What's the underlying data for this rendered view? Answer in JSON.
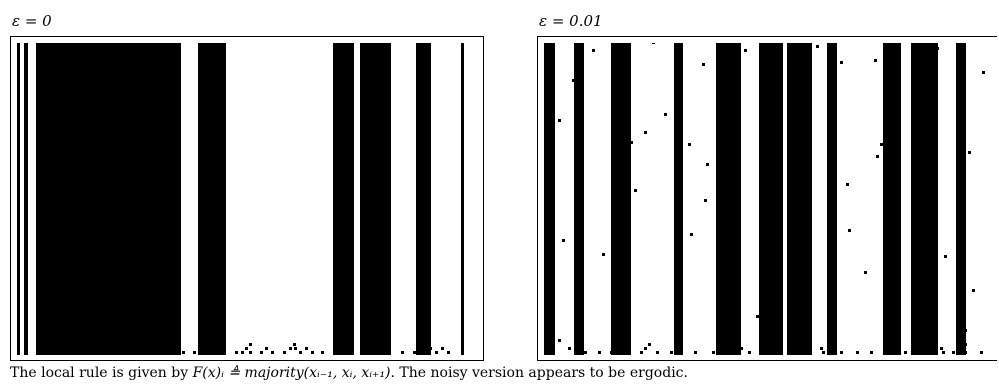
{
  "panels": [
    {
      "label": "ε = 0",
      "columns": [
        {
          "x": 0,
          "w": 3
        },
        {
          "x": 7,
          "w": 4
        },
        {
          "x": 19,
          "w": 145
        },
        {
          "x": 181,
          "w": 28
        },
        {
          "x": 316,
          "w": 21
        },
        {
          "x": 343,
          "w": 31
        },
        {
          "x": 399,
          "w": 15
        },
        {
          "x": 444,
          "w": 3
        }
      ],
      "dots": [
        [
          40,
          318
        ],
        [
          44,
          318
        ],
        [
          48,
          318
        ],
        [
          52,
          318
        ],
        [
          56,
          318
        ],
        [
          64,
          318
        ],
        [
          71,
          318
        ],
        [
          100,
          318
        ],
        [
          110,
          318
        ],
        [
          121,
          318
        ],
        [
          132,
          318
        ],
        [
          140,
          318
        ],
        [
          150,
          318
        ],
        [
          156,
          318
        ],
        [
          165,
          318
        ],
        [
          176,
          318
        ],
        [
          218,
          318
        ],
        [
          224,
          318
        ],
        [
          232,
          318
        ],
        [
          243,
          318
        ],
        [
          254,
          318
        ],
        [
          266,
          318
        ],
        [
          282,
          318
        ],
        [
          294,
          318
        ],
        [
          304,
          318
        ],
        [
          366,
          318
        ],
        [
          384,
          318
        ],
        [
          396,
          318
        ],
        [
          408,
          318
        ],
        [
          418,
          318
        ],
        [
          430,
          318
        ],
        [
          42,
          314
        ],
        [
          46,
          314
        ],
        [
          50,
          314
        ],
        [
          54,
          314
        ],
        [
          130,
          314
        ],
        [
          139,
          314
        ],
        [
          228,
          314
        ],
        [
          248,
          314
        ],
        [
          272,
          314
        ],
        [
          277,
          314
        ],
        [
          288,
          314
        ],
        [
          402,
          314
        ],
        [
          412,
          314
        ],
        [
          424,
          314
        ],
        [
          46,
          310
        ],
        [
          50,
          310
        ],
        [
          232,
          310
        ],
        [
          276,
          310
        ],
        [
          406,
          310
        ]
      ]
    },
    {
      "label": "ε = 0.01",
      "columns": [
        {
          "x": 0,
          "w": 11
        },
        {
          "x": 30,
          "w": 10
        },
        {
          "x": 67,
          "w": 20
        },
        {
          "x": 130,
          "w": 9
        },
        {
          "x": 172,
          "w": 25
        },
        {
          "x": 215,
          "w": 24
        },
        {
          "x": 243,
          "w": 25
        },
        {
          "x": 283,
          "w": 10
        },
        {
          "x": 339,
          "w": 18
        },
        {
          "x": 367,
          "w": 27
        },
        {
          "x": 412,
          "w": 10
        }
      ],
      "dots": [
        [
          48,
          16
        ],
        [
          68,
          2
        ],
        [
          108,
          8
        ],
        [
          200,
          16
        ],
        [
          250,
          8
        ],
        [
          272,
          12
        ],
        [
          286,
          14
        ],
        [
          330,
          26
        ],
        [
          392,
          14
        ],
        [
          28,
          46
        ],
        [
          158,
          30
        ],
        [
          296,
          28
        ],
        [
          438,
          38
        ],
        [
          6,
          60
        ],
        [
          14,
          86
        ],
        [
          120,
          80
        ],
        [
          144,
          110
        ],
        [
          100,
          98
        ],
        [
          34,
          126
        ],
        [
          86,
          108
        ],
        [
          336,
          110
        ],
        [
          424,
          118
        ],
        [
          162,
          130
        ],
        [
          332,
          122
        ],
        [
          6,
          150
        ],
        [
          84,
          140
        ],
        [
          90,
          156
        ],
        [
          160,
          166
        ],
        [
          8,
          176
        ],
        [
          80,
          170
        ],
        [
          216,
          156
        ],
        [
          302,
          150
        ],
        [
          18,
          206
        ],
        [
          58,
          220
        ],
        [
          264,
          234
        ],
        [
          304,
          196
        ],
        [
          212,
          282
        ],
        [
          226,
          270
        ],
        [
          320,
          238
        ],
        [
          350,
          194
        ],
        [
          384,
          176
        ],
        [
          146,
          200
        ],
        [
          428,
          256
        ],
        [
          30,
          282
        ],
        [
          74,
          278
        ],
        [
          400,
          222
        ],
        [
          420,
          296
        ],
        [
          264,
          298
        ],
        [
          14,
          306
        ],
        [
          24,
          314
        ],
        [
          40,
          318
        ],
        [
          54,
          318
        ],
        [
          66,
          318
        ],
        [
          82,
          318
        ],
        [
          96,
          318
        ],
        [
          112,
          318
        ],
        [
          126,
          318
        ],
        [
          150,
          318
        ],
        [
          168,
          318
        ],
        [
          184,
          318
        ],
        [
          204,
          318
        ],
        [
          220,
          318
        ],
        [
          236,
          318
        ],
        [
          262,
          318
        ],
        [
          278,
          318
        ],
        [
          296,
          318
        ],
        [
          312,
          318
        ],
        [
          326,
          318
        ],
        [
          348,
          318
        ],
        [
          360,
          318
        ],
        [
          380,
          318
        ],
        [
          398,
          318
        ],
        [
          408,
          318
        ],
        [
          420,
          318
        ],
        [
          436,
          318
        ],
        [
          100,
          314
        ],
        [
          196,
          314
        ],
        [
          230,
          314
        ],
        [
          276,
          314
        ],
        [
          396,
          314
        ],
        [
          416,
          314
        ],
        [
          104,
          310
        ],
        [
          234,
          310
        ],
        [
          420,
          310
        ]
      ]
    }
  ],
  "caption": {
    "prefix": "The local rule is given by ",
    "formula": "F(x)ᵢ ≜ majority(xᵢ₋₁, xᵢ, xᵢ₊₁)",
    "suffix": ". The noisy version appears to be ergodic."
  }
}
